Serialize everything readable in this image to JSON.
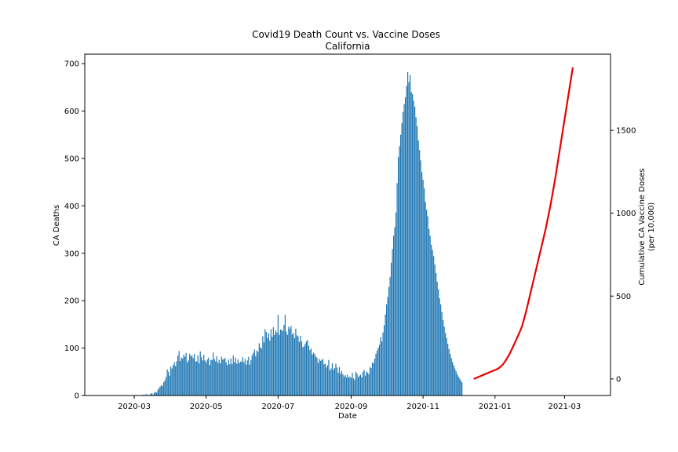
{
  "chart_data": {
    "type": "bar",
    "title": "Covid19 Death Count vs. Vaccine Doses",
    "subtitle": "California",
    "xlabel": "Date",
    "ylabel": "CA Deaths",
    "y2label_line1": "Cumulative CA Vaccine Doses",
    "y2label_line2": "(per 10,000)",
    "x_tick_labels": [
      "2020-03",
      "2020-05",
      "2020-07",
      "2020-09",
      "2020-11",
      "2021-01",
      "2021-03"
    ],
    "xlim": [
      "2020-01-19",
      "2021-04-09"
    ],
    "ylim": [
      0,
      720
    ],
    "y_ticks": [
      0,
      100,
      200,
      300,
      400,
      500,
      600,
      700
    ],
    "y2lim": [
      -100,
      1960
    ],
    "y2_ticks": [
      0,
      500,
      1000,
      1500
    ],
    "grid": false,
    "series": [
      {
        "chart_type": "bar",
        "axis": "left",
        "color": "#1f77b4",
        "start_date": "2020-02-01",
        "values": [
          0,
          0,
          0,
          0,
          0,
          0,
          0,
          0,
          0,
          0,
          0,
          0,
          0,
          0,
          0,
          0,
          0,
          0,
          0,
          0,
          0,
          0,
          0,
          0,
          0,
          0,
          0,
          0,
          0,
          0,
          0,
          0,
          0,
          0,
          0,
          1,
          0,
          2,
          1,
          3,
          0,
          2,
          1,
          4,
          5,
          2,
          6,
          8,
          6,
          12,
          16,
          19,
          22,
          20,
          28,
          32,
          39,
          55,
          50,
          42,
          61,
          57,
          64,
          70,
          62,
          72,
          84,
          94,
          73,
          80,
          78,
          86,
          82,
          90,
          70,
          74,
          88,
          83,
          85,
          79,
          88,
          72,
          72,
          85,
          68,
          93,
          81,
          74,
          86,
          74,
          70,
          76,
          80,
          64,
          75,
          75,
          91,
          77,
          72,
          83,
          69,
          75,
          68,
          82,
          76,
          77,
          79,
          70,
          64,
          76,
          66,
          78,
          66,
          84,
          70,
          80,
          67,
          76,
          68,
          71,
          72,
          81,
          70,
          77,
          65,
          74,
          82,
          65,
          75,
          85,
          90,
          97,
          83,
          95,
          92,
          110,
          102,
          99,
          125,
          112,
          140,
          134,
          121,
          131,
          116,
          140,
          124,
          144,
          128,
          138,
          133,
          170,
          128,
          139,
          139,
          136,
          149,
          170,
          135,
          128,
          145,
          141,
          147,
          129,
          132,
          121,
          141,
          127,
          125,
          113,
          126,
          114,
          102,
          104,
          109,
          114,
          117,
          105,
          96,
          99,
          86,
          90,
          88,
          82,
          80,
          69,
          77,
          73,
          75,
          77,
          66,
          67,
          59,
          64,
          75,
          53,
          57,
          68,
          54,
          58,
          67,
          59,
          48,
          60,
          46,
          52,
          45,
          40,
          43,
          38,
          44,
          38,
          40,
          37,
          48,
          36,
          33,
          50,
          46,
          39,
          42,
          44,
          38,
          50,
          54,
          42,
          51,
          48,
          45,
          60,
          58,
          70,
          68,
          78,
          88,
          95,
          101,
          107,
          123,
          114,
          133,
          148,
          171,
          192,
          208,
          229,
          250,
          280,
          309,
          337,
          355,
          386,
          448,
          503,
          526,
          550,
          574,
          598,
          615,
          629,
          653,
          682,
          661,
          676,
          640,
          636,
          622,
          609,
          587,
          568,
          538,
          518,
          496,
          471,
          455,
          437,
          408,
          392,
          378,
          351,
          337,
          318,
          307,
          294,
          276,
          258,
          240,
          224,
          205,
          192,
          176,
          159,
          145,
          132,
          121,
          109,
          98,
          88,
          79,
          71,
          64,
          57,
          51,
          45,
          40,
          36,
          32,
          28
        ]
      },
      {
        "chart_type": "line",
        "axis": "right",
        "color": "#e80000",
        "start_date": "2020-12-14",
        "values": [
          0,
          3,
          6,
          9,
          12,
          15,
          18,
          21,
          24,
          27,
          30,
          33,
          36,
          39,
          42,
          45,
          48,
          51,
          54,
          57,
          60,
          64,
          70,
          76,
          82,
          90,
          100,
          110,
          122,
          134,
          146,
          160,
          175,
          190,
          205,
          220,
          236,
          252,
          268,
          284,
          300,
          320,
          345,
          370,
          397,
          425,
          455,
          485,
          515,
          545,
          575,
          605,
          635,
          665,
          695,
          725,
          755,
          785,
          815,
          845,
          875,
          905,
          940,
          975,
          1010,
          1045,
          1085,
          1125,
          1165,
          1205,
          1250,
          1295,
          1340,
          1385,
          1430,
          1475,
          1520,
          1565,
          1610,
          1655,
          1700,
          1745,
          1790,
          1835,
          1880
        ]
      }
    ]
  }
}
